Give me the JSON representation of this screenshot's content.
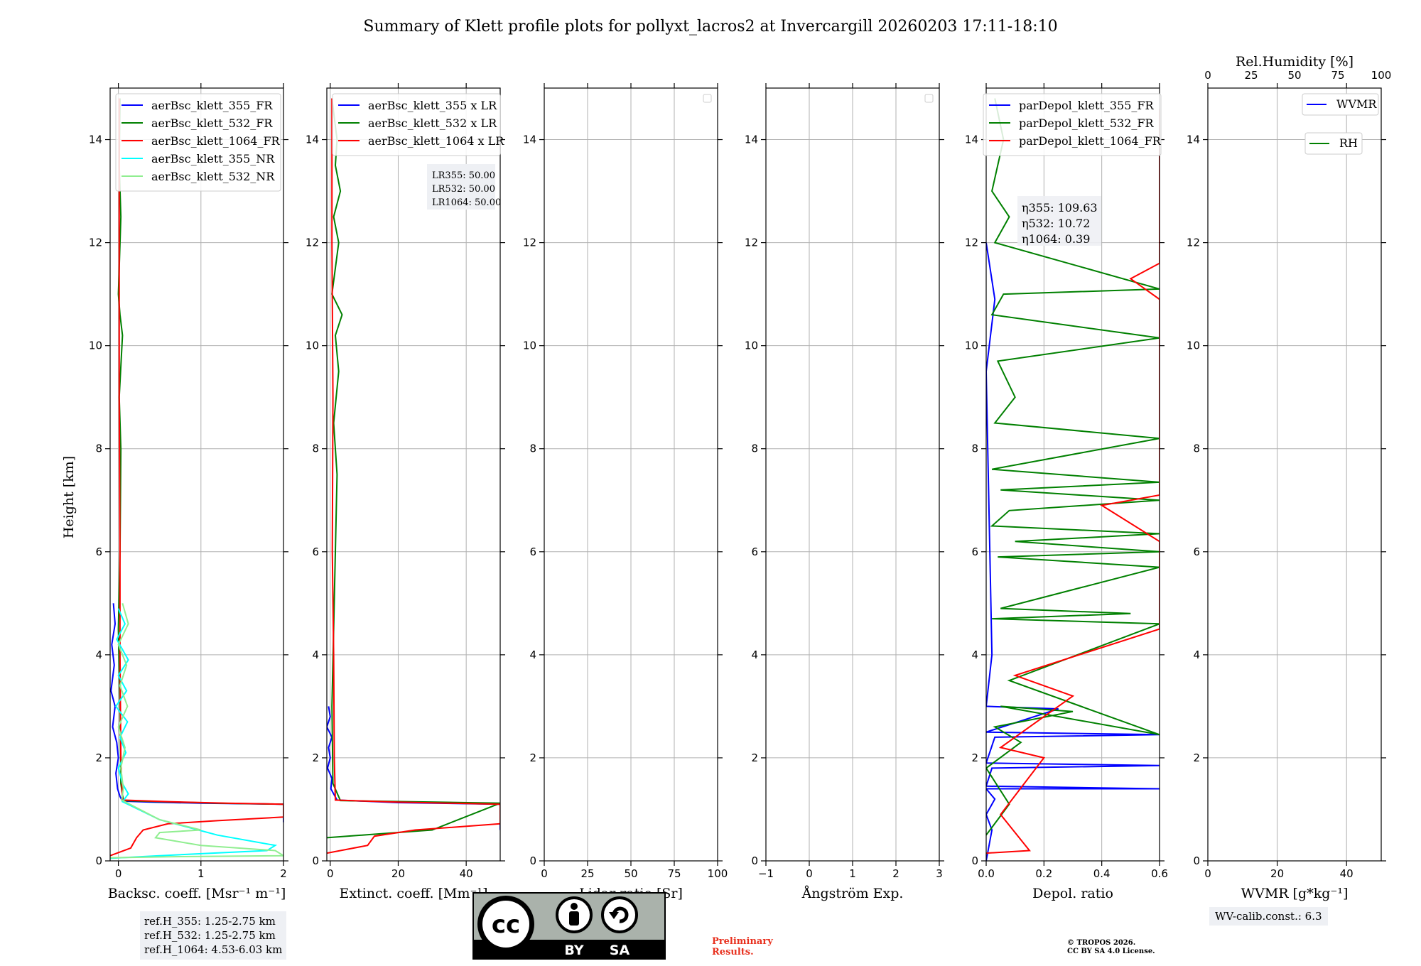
{
  "figure": {
    "title": "Summary of Klett profile plots for pollyxt_lacros2 at Invercargill 20260203 17:11-18:10",
    "ylabel": "Height [km]",
    "yticks": [
      "0",
      "2",
      "4",
      "6",
      "8",
      "10",
      "12",
      "14"
    ],
    "ylim": [
      0,
      15
    ]
  },
  "colors": {
    "c355": "#0000ff",
    "c532": "#008000",
    "c1064": "#ff0000",
    "c355nr": "#00ffff",
    "c532nr": "#90ee90"
  },
  "chart_data": [
    {
      "type": "line",
      "xlabel": "Backsc. coeff. [Msr⁻¹ m⁻¹]",
      "xlim": [
        -0.1,
        2
      ],
      "xticks": [
        {
          "v": 0,
          "t": "0"
        },
        {
          "v": 1,
          "t": "1"
        },
        {
          "v": 2,
          "t": "2"
        }
      ],
      "legend": [
        "aerBsc_klett_355_FR",
        "aerBsc_klett_532_FR",
        "aerBsc_klett_1064_FR",
        "aerBsc_klett_355_NR",
        "aerBsc_klett_532_NR"
      ],
      "series": [
        {
          "name": "aerBsc_klett_355_FR",
          "color": "#0000ff",
          "x": [
            -0.06,
            -0.04,
            -0.08,
            -0.05,
            -0.09,
            -0.04,
            -0.07,
            -0.02,
            0.0,
            -0.03,
            -0.01,
            0.02,
            0.05,
            0.4,
            1.0,
            2.0,
            2.0
          ],
          "y": [
            5.0,
            4.6,
            4.2,
            3.8,
            3.3,
            3.0,
            2.6,
            2.3,
            2.0,
            1.7,
            1.4,
            1.25,
            1.16,
            1.14,
            1.12,
            1.1,
            0.75
          ]
        },
        {
          "name": "aerBsc_klett_532_FR",
          "color": "#008000",
          "x": [
            0.02,
            0.01,
            0.03,
            0.0,
            0.02,
            0.05,
            0.01,
            0.03,
            0.02,
            0.0,
            0.02,
            0.03,
            0.06,
            0.5,
            1.2,
            2.0
          ],
          "y": [
            14.8,
            13.5,
            12.5,
            11.0,
            10.6,
            10.2,
            9.0,
            8.0,
            6.0,
            4.5,
            3.0,
            1.5,
            1.17,
            1.15,
            1.12,
            1.1
          ]
        },
        {
          "name": "aerBsc_klett_1064_FR",
          "color": "#ff0000",
          "x": [
            0.01,
            0.01,
            0.01,
            0.02,
            0.02,
            0.03,
            0.05,
            0.6,
            1.3,
            2.0,
            2.0,
            1.2,
            0.6,
            0.3,
            0.22,
            0.15,
            -0.1
          ],
          "y": [
            14.8,
            12.0,
            9.0,
            6.0,
            4.0,
            2.0,
            1.18,
            1.15,
            1.12,
            1.1,
            0.85,
            0.78,
            0.72,
            0.6,
            0.45,
            0.25,
            0.1
          ]
        },
        {
          "name": "aerBsc_klett_355_NR",
          "color": "#00ffff",
          "x": [
            0.0,
            0.08,
            -0.02,
            0.12,
            0.0,
            0.1,
            -0.03,
            0.11,
            0.02,
            0.09,
            0.0,
            0.05,
            0.12,
            0.05,
            0.5,
            1.2,
            1.9,
            1.8,
            0.5,
            -0.1
          ],
          "y": [
            4.9,
            4.6,
            4.3,
            3.9,
            3.6,
            3.3,
            3.0,
            2.7,
            2.4,
            2.1,
            1.8,
            1.5,
            1.3,
            1.15,
            0.8,
            0.5,
            0.3,
            0.2,
            0.1,
            0.05
          ]
        },
        {
          "name": "aerBsc_klett_532_NR",
          "color": "#90ee90",
          "x": [
            0.05,
            0.12,
            0.0,
            0.1,
            0.02,
            0.11,
            0.0,
            0.08,
            0.03,
            0.06,
            0.04,
            0.5,
            1.0,
            0.5,
            0.45,
            1.0,
            1.9,
            2.0,
            0.6,
            -0.1
          ],
          "y": [
            5.0,
            4.6,
            4.2,
            3.8,
            3.4,
            3.0,
            2.6,
            2.2,
            1.8,
            1.4,
            1.18,
            0.8,
            0.6,
            0.55,
            0.45,
            0.3,
            0.2,
            0.1,
            0.08,
            0.06
          ]
        }
      ]
    },
    {
      "type": "line",
      "xlabel": "Extinct. coeff. [Mm⁻¹]",
      "xlim": [
        -1,
        50
      ],
      "xticks": [
        {
          "v": 0,
          "t": "0"
        },
        {
          "v": 20,
          "t": "20"
        },
        {
          "v": 40,
          "t": "40"
        }
      ],
      "legend": [
        "aerBsc_klett_355 x LR",
        "aerBsc_klett_532 x LR",
        "aerBsc_klett_1064 x LR"
      ],
      "lr_box": [
        "LR355: 50.00",
        "LR532: 50.00",
        "LR1064: 50.00"
      ],
      "series": [
        {
          "name": "aerBsc_klett_355 x LR",
          "color": "#0000ff",
          "x": [
            -0.5,
            0.0,
            -1.0,
            0.5,
            -0.5,
            0.0,
            -0.8,
            0.5,
            0.2,
            1.0,
            2.0,
            20.0,
            50.0,
            50.0
          ],
          "y": [
            3.0,
            2.8,
            2.6,
            2.4,
            2.2,
            2.0,
            1.8,
            1.6,
            1.4,
            1.3,
            1.18,
            1.13,
            1.1,
            0.6
          ]
        },
        {
          "name": "aerBsc_klett_532 x LR",
          "color": "#008000",
          "x": [
            0.5,
            2.0,
            1.5,
            3.0,
            1.0,
            2.5,
            0.5,
            3.5,
            1.5,
            2.5,
            1.0,
            2.0,
            1.5,
            1.0,
            0.5,
            0.8,
            3.0,
            50.0,
            30.0,
            -1.0
          ],
          "y": [
            14.8,
            14.0,
            13.5,
            13.0,
            12.5,
            12.0,
            11.0,
            10.6,
            10.2,
            9.5,
            8.5,
            7.5,
            6.0,
            4.5,
            3.0,
            1.5,
            1.17,
            1.12,
            0.6,
            0.45
          ]
        },
        {
          "name": "aerBsc_klett_1064 x LR",
          "color": "#ff0000",
          "x": [
            0.5,
            0.5,
            0.8,
            0.6,
            1.0,
            1.2,
            1.5,
            20.0,
            50.0,
            50.0,
            25.0,
            13.0,
            11.0,
            -1.0
          ],
          "y": [
            14.8,
            12.0,
            9.0,
            6.0,
            4.0,
            2.0,
            1.18,
            1.14,
            1.1,
            0.72,
            0.6,
            0.48,
            0.3,
            0.15
          ]
        }
      ]
    },
    {
      "type": "line",
      "xlabel": "Lidar ratio [Sr]",
      "xlim": [
        0,
        100
      ],
      "xticks": [
        {
          "v": 0,
          "t": "0"
        },
        {
          "v": 25,
          "t": "25"
        },
        {
          "v": 50,
          "t": "50"
        },
        {
          "v": 75,
          "t": "75"
        },
        {
          "v": 100,
          "t": "100"
        }
      ],
      "legend": [],
      "series": []
    },
    {
      "type": "line",
      "xlabel": "Ångström Exp.",
      "xlim": [
        -1,
        3
      ],
      "xticks": [
        {
          "v": -1,
          "t": "−1"
        },
        {
          "v": 0,
          "t": "0"
        },
        {
          "v": 1,
          "t": "1"
        },
        {
          "v": 2,
          "t": "2"
        },
        {
          "v": 3,
          "t": "3"
        }
      ],
      "legend": [],
      "series": []
    },
    {
      "type": "line",
      "xlabel": "Depol. ratio",
      "xlim": [
        0,
        0.6
      ],
      "xticks": [
        {
          "v": 0,
          "t": "0.0"
        },
        {
          "v": 0.2,
          "t": "0.2"
        },
        {
          "v": 0.4,
          "t": "0.4"
        },
        {
          "v": 0.6,
          "t": "0.6"
        }
      ],
      "legend": [
        "parDepol_klett_355_FR",
        "parDepol_klett_532_FR",
        "parDepol_klett_1064_FR"
      ],
      "eta_box": [
        "η355: 109.63",
        "η532: 10.72",
        "η1064: 0.39"
      ],
      "series": [
        {
          "name": "parDepol_klett_355_FR",
          "color": "#0000ff",
          "x": [
            0.0,
            0.02,
            0.0,
            0.03,
            0.0,
            0.6,
            0.0,
            0.02,
            0.6,
            0.0,
            0.03,
            0.6,
            0.0,
            0.25,
            0.0,
            0.02,
            0.0,
            0.03,
            0.0
          ],
          "y": [
            0.0,
            0.6,
            0.9,
            1.2,
            1.4,
            1.4,
            1.45,
            1.8,
            1.85,
            1.9,
            2.4,
            2.45,
            2.5,
            2.95,
            3.0,
            4.0,
            9.5,
            10.9,
            12.0
          ]
        },
        {
          "name": "parDepol_klett_532_FR",
          "color": "#008000",
          "x": [
            0.0,
            0.08,
            0.0,
            0.12,
            0.03,
            0.3,
            0.05,
            0.6,
            0.08,
            0.6,
            0.02,
            0.5,
            0.05,
            0.6,
            0.04,
            0.6,
            0.1,
            0.6,
            0.02,
            0.08,
            0.6,
            0.05,
            0.6,
            0.02,
            0.6,
            0.03,
            0.1,
            0.04,
            0.6,
            0.02,
            0.06,
            0.6,
            0.03,
            0.08,
            0.02,
            0.06,
            0.03
          ],
          "y": [
            0.5,
            1.1,
            1.8,
            2.3,
            2.6,
            2.9,
            3.0,
            2.45,
            3.5,
            4.6,
            4.7,
            4.8,
            4.9,
            5.7,
            5.9,
            6.0,
            6.2,
            6.35,
            6.5,
            6.8,
            7.0,
            7.2,
            7.35,
            7.6,
            8.2,
            8.5,
            9.0,
            9.7,
            10.15,
            10.6,
            11.0,
            11.1,
            12.0,
            12.5,
            13.0,
            14.0,
            14.8
          ]
        },
        {
          "name": "parDepol_klett_1064_FR",
          "color": "#ff0000",
          "x": [
            0.0,
            0.15,
            0.05,
            0.2,
            0.05,
            0.3,
            0.1,
            0.6,
            0.6,
            0.6,
            0.6,
            0.6,
            0.4,
            0.6,
            0.6,
            0.6,
            0.6,
            0.6,
            0.6,
            0.6,
            0.6,
            0.6,
            0.5,
            0.6,
            0.6,
            0.6,
            0.6,
            0.6,
            0.6,
            0.6,
            0.6,
            0.6
          ],
          "y": [
            0.15,
            0.2,
            0.9,
            2.0,
            2.2,
            3.2,
            3.6,
            4.5,
            4.9,
            5.5,
            5.8,
            6.2,
            6.9,
            7.1,
            8.5,
            8.9,
            9.3,
            9.8,
            10.1,
            10.4,
            10.6,
            10.9,
            11.3,
            11.6,
            12.2,
            12.5,
            12.8,
            13.2,
            13.5,
            14.0,
            14.3,
            14.6
          ]
        }
      ]
    },
    {
      "type": "line",
      "xlabel": "WVMR [g*kg⁻¹]",
      "xlim": [
        0,
        50
      ],
      "xticks": [
        {
          "v": 0,
          "t": "0"
        },
        {
          "v": 20,
          "t": "20"
        },
        {
          "v": 40,
          "t": "40"
        }
      ],
      "top_xlabel": "Rel.Humidity [%]",
      "top_xticks": [
        {
          "v": 0,
          "t": "0"
        },
        {
          "v": 25,
          "t": "25"
        },
        {
          "v": 50,
          "t": "50"
        },
        {
          "v": 75,
          "t": "75"
        },
        {
          "v": 100,
          "t": "100"
        }
      ],
      "legend": [
        "WVMR",
        "RH"
      ],
      "series": []
    }
  ],
  "refh_box": [
    "ref.H_355: 1.25-2.75 km",
    "ref.H_532: 1.25-2.75 km",
    "ref.H_1064: 4.53-6.03 km"
  ],
  "wv_calib": "WV-calib.const.: 6.3",
  "license": {
    "by": "BY",
    "sa": "SA",
    "cc": "cc"
  },
  "preliminary": [
    "Preliminary",
    "Results."
  ],
  "copyright": [
    "© TROPOS 2026.",
    "CC BY SA 4.0 License."
  ]
}
